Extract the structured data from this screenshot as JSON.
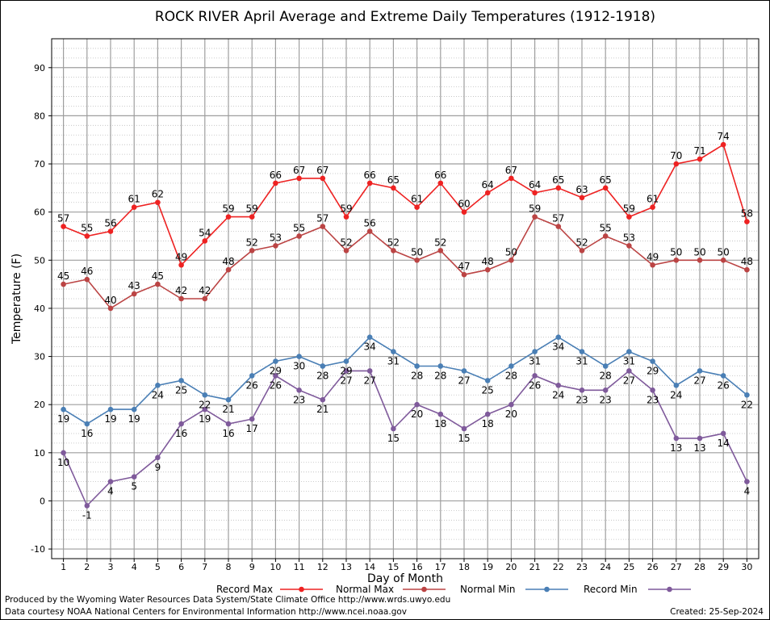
{
  "chart_data": {
    "type": "line",
    "title": "ROCK RIVER April Average and Extreme Daily Temperatures (1912-1918)",
    "xlabel": "Day of Month",
    "ylabel": "Temperature (F)",
    "x": [
      1,
      2,
      3,
      4,
      5,
      6,
      7,
      8,
      9,
      10,
      11,
      12,
      13,
      14,
      15,
      16,
      17,
      18,
      19,
      20,
      21,
      22,
      23,
      24,
      25,
      26,
      27,
      28,
      29,
      30
    ],
    "xlim": [
      0.5,
      30.5
    ],
    "ylim": [
      -12,
      96
    ],
    "yticks": [
      -10,
      0,
      10,
      20,
      30,
      40,
      50,
      60,
      70,
      80,
      90
    ],
    "grid": true,
    "legend_position": "bottom",
    "series": [
      {
        "name": "Record Max",
        "color": "#ee2222",
        "label_pos": "above",
        "values": [
          57,
          55,
          56,
          61,
          62,
          49,
          54,
          59,
          59,
          66,
          67,
          67,
          59,
          66,
          65,
          61,
          66,
          60,
          64,
          67,
          64,
          65,
          63,
          65,
          59,
          61,
          70,
          71,
          74,
          58
        ]
      },
      {
        "name": "Normal Max",
        "color": "#bb4444",
        "label_pos": "above",
        "values": [
          45,
          46,
          40,
          43,
          45,
          42,
          42,
          48,
          52,
          53,
          55,
          57,
          52,
          56,
          52,
          50,
          52,
          47,
          48,
          50,
          59,
          57,
          52,
          55,
          53,
          49,
          50,
          50,
          50,
          48
        ]
      },
      {
        "name": "Normal Min",
        "color": "#4a7fb5",
        "label_pos": "below",
        "values": [
          19,
          16,
          19,
          19,
          24,
          25,
          22,
          21,
          26,
          29,
          30,
          28,
          29,
          34,
          31,
          28,
          28,
          27,
          25,
          28,
          31,
          34,
          31,
          28,
          31,
          29,
          24,
          27,
          26,
          22
        ]
      },
      {
        "name": "Record Min",
        "color": "#7f5a9b",
        "label_pos": "below",
        "values": [
          10,
          -1,
          4,
          5,
          9,
          16,
          19,
          16,
          17,
          26,
          23,
          21,
          27,
          27,
          15,
          20,
          18,
          15,
          18,
          20,
          26,
          24,
          23,
          23,
          27,
          23,
          13,
          13,
          14,
          4
        ]
      }
    ]
  },
  "footer": {
    "produced_by": "Produced by the Wyoming Water Resources Data System/State Climate Office http://www.wrds.uwyo.edu",
    "data_courtesy": "Data courtesy NOAA National Centers for Environmental Information http://www.ncei.noaa.gov",
    "created": "Created:  25-Sep-2024"
  }
}
